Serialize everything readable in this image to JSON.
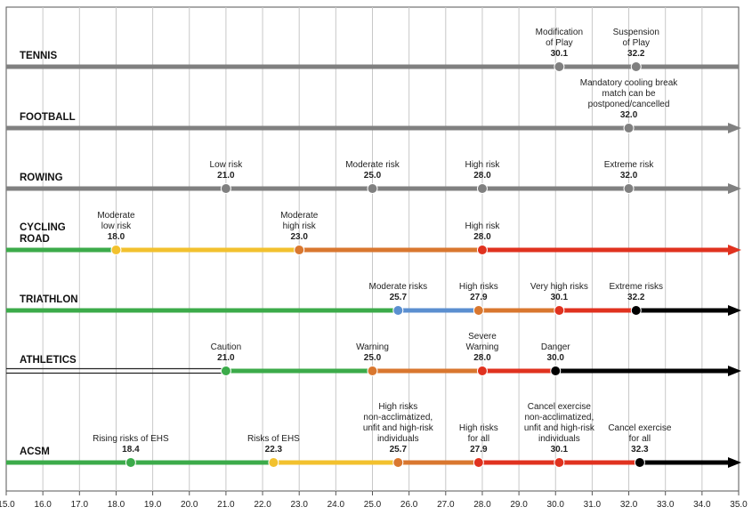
{
  "chart_data": {
    "type": "timeline",
    "xlim": [
      15.0,
      35.0
    ],
    "x_ticks": [
      "15.0",
      "16.0",
      "17.0",
      "18.0",
      "19.0",
      "20.0",
      "21.0",
      "22.0",
      "23.0",
      "24.0",
      "25.0",
      "26.0",
      "27.0",
      "28.0",
      "29.0",
      "30.0",
      "31.0",
      "32.0",
      "33.0",
      "34.0",
      "35.0"
    ],
    "colors": {
      "gray": "#808080",
      "green": "#3cab4a",
      "yellow": "#f2c12e",
      "orange": "#d9772f",
      "red": "#e0321f",
      "blue": "#5b8fd0",
      "black": "#000000",
      "grid": "#c8c8c8"
    },
    "rows": [
      {
        "sport": "TENNIS",
        "segments": [
          {
            "from": 15.0,
            "to": 35.0,
            "color": "gray"
          }
        ],
        "arrow": false,
        "points": [
          {
            "value": 30.1,
            "label": "30.1",
            "text": [
              "Modification",
              "of Play"
            ],
            "color": "gray"
          },
          {
            "value": 32.2,
            "label": "32.2",
            "text": [
              "Suspension",
              "of Play"
            ],
            "color": "gray"
          }
        ]
      },
      {
        "sport": "FOOTBALL",
        "segments": [
          {
            "from": 15.0,
            "to": 35.0,
            "color": "gray"
          }
        ],
        "arrow": true,
        "points": [
          {
            "value": 32.0,
            "label": "32.0",
            "text": [
              "Mandatory cooling break",
              "match can be",
              "postponed/cancelled"
            ],
            "color": "gray"
          }
        ]
      },
      {
        "sport": "ROWING",
        "segments": [
          {
            "from": 15.0,
            "to": 35.0,
            "color": "gray"
          }
        ],
        "arrow": true,
        "points": [
          {
            "value": 21.0,
            "label": "21.0",
            "text": [
              "Low risk"
            ],
            "color": "gray"
          },
          {
            "value": 25.0,
            "label": "25.0",
            "text": [
              "Moderate risk"
            ],
            "color": "gray"
          },
          {
            "value": 28.0,
            "label": "28.0",
            "text": [
              "High risk"
            ],
            "color": "gray"
          },
          {
            "value": 32.0,
            "label": "32.0",
            "text": [
              "Extreme risk"
            ],
            "color": "gray"
          }
        ]
      },
      {
        "sport": "CYCLING ROAD",
        "sport_lines": [
          "CYCLING",
          "ROAD"
        ],
        "segments": [
          {
            "from": 15.0,
            "to": 18.0,
            "color": "green"
          },
          {
            "from": 18.0,
            "to": 23.0,
            "color": "yellow"
          },
          {
            "from": 23.0,
            "to": 28.0,
            "color": "orange"
          },
          {
            "from": 28.0,
            "to": 35.0,
            "color": "red"
          }
        ],
        "arrow": true,
        "points": [
          {
            "value": 18.0,
            "label": "18.0",
            "text": [
              "Moderate",
              "low risk"
            ],
            "color": "yellow"
          },
          {
            "value": 23.0,
            "label": "23.0",
            "text": [
              "Moderate",
              "high risk"
            ],
            "color": "orange"
          },
          {
            "value": 28.0,
            "label": "28.0",
            "text": [
              "High risk"
            ],
            "color": "red"
          }
        ]
      },
      {
        "sport": "TRIATHLON",
        "segments": [
          {
            "from": 15.0,
            "to": 25.7,
            "color": "green"
          },
          {
            "from": 25.7,
            "to": 27.9,
            "color": "blue"
          },
          {
            "from": 27.9,
            "to": 30.1,
            "color": "orange"
          },
          {
            "from": 30.1,
            "to": 32.2,
            "color": "red"
          },
          {
            "from": 32.2,
            "to": 35.0,
            "color": "black"
          }
        ],
        "arrow": true,
        "points": [
          {
            "value": 25.7,
            "label": "25.7",
            "text": [
              "Moderate risks"
            ],
            "color": "blue"
          },
          {
            "value": 27.9,
            "label": "27.9",
            "text": [
              "High risks"
            ],
            "color": "orange"
          },
          {
            "value": 30.1,
            "label": "30.1",
            "text": [
              "Very high risks"
            ],
            "color": "red"
          },
          {
            "value": 32.2,
            "label": "32.2",
            "text": [
              "Extreme risks"
            ],
            "color": "black"
          }
        ]
      },
      {
        "sport": "ATHLETICS",
        "segments": [
          {
            "from": 15.0,
            "to": 21.0,
            "color": "double"
          },
          {
            "from": 21.0,
            "to": 25.0,
            "color": "green"
          },
          {
            "from": 25.0,
            "to": 28.0,
            "color": "orange"
          },
          {
            "from": 28.0,
            "to": 30.0,
            "color": "red"
          },
          {
            "from": 30.0,
            "to": 35.0,
            "color": "black"
          }
        ],
        "arrow": true,
        "points": [
          {
            "value": 21.0,
            "label": "21.0",
            "text": [
              "Caution"
            ],
            "color": "green"
          },
          {
            "value": 25.0,
            "label": "25.0",
            "text": [
              "Warning"
            ],
            "color": "orange"
          },
          {
            "value": 28.0,
            "label": "28.0",
            "text": [
              "Severe",
              "Warning"
            ],
            "color": "red"
          },
          {
            "value": 30.0,
            "label": "30.0",
            "text": [
              "Danger"
            ],
            "color": "black"
          }
        ]
      },
      {
        "sport": "ACSM",
        "segments": [
          {
            "from": 15.0,
            "to": 22.3,
            "color": "green"
          },
          {
            "from": 22.3,
            "to": 25.7,
            "color": "yellow"
          },
          {
            "from": 25.7,
            "to": 27.9,
            "color": "orange"
          },
          {
            "from": 27.9,
            "to": 32.3,
            "color": "red"
          },
          {
            "from": 32.3,
            "to": 35.0,
            "color": "black"
          }
        ],
        "arrow": true,
        "points": [
          {
            "value": 18.4,
            "label": "18.4",
            "text": [
              "Rising risks of EHS"
            ],
            "color": "green"
          },
          {
            "value": 22.3,
            "label": "22.3",
            "text": [
              "Risks of EHS"
            ],
            "color": "yellow"
          },
          {
            "value": 25.7,
            "label": "25.7",
            "text": [
              "High risks",
              "non-acclimatized,",
              "unfit and high-risk",
              "individuals"
            ],
            "color": "orange"
          },
          {
            "value": 27.9,
            "label": "27.9",
            "text": [
              "High risks",
              "for all"
            ],
            "color": "red"
          },
          {
            "value": 30.1,
            "label": "30.1",
            "text": [
              "Cancel exercise",
              "non-acclimatized,",
              "unfit and high-risk",
              "individuals"
            ],
            "color": "red"
          },
          {
            "value": 32.3,
            "label": "32.3",
            "text": [
              "Cancel exercise",
              "for all"
            ],
            "color": "black"
          }
        ]
      }
    ]
  }
}
